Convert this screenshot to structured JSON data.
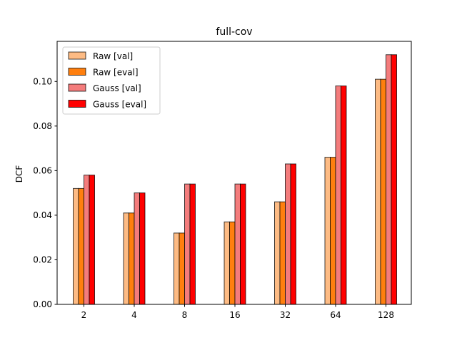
{
  "chart_data": {
    "type": "bar",
    "title": "full-cov",
    "xlabel": "",
    "ylabel": "DCF",
    "categories": [
      "2",
      "4",
      "8",
      "16",
      "32",
      "64",
      "128"
    ],
    "ylim": [
      0,
      0.118
    ],
    "yticks": [
      0.0,
      0.02,
      0.04,
      0.06,
      0.08,
      0.1
    ],
    "ytick_labels": [
      "0.00",
      "0.02",
      "0.04",
      "0.06",
      "0.08",
      "0.10"
    ],
    "grid": false,
    "legend_position": "top-left",
    "series": [
      {
        "name": "Raw [val]",
        "color": "#FDBB84",
        "values": [
          0.052,
          0.041,
          0.032,
          0.037,
          0.046,
          0.066,
          0.101
        ]
      },
      {
        "name": "Raw [eval]",
        "color": "#FF7F0E",
        "values": [
          0.052,
          0.041,
          0.032,
          0.037,
          0.046,
          0.066,
          0.101
        ]
      },
      {
        "name": "Gauss [val]",
        "color": "#F47C7C",
        "values": [
          0.058,
          0.05,
          0.054,
          0.054,
          0.063,
          0.098,
          0.112
        ]
      },
      {
        "name": "Gauss [eval]",
        "color": "#FF0000",
        "values": [
          0.058,
          0.05,
          0.054,
          0.054,
          0.063,
          0.098,
          0.112
        ]
      }
    ]
  }
}
